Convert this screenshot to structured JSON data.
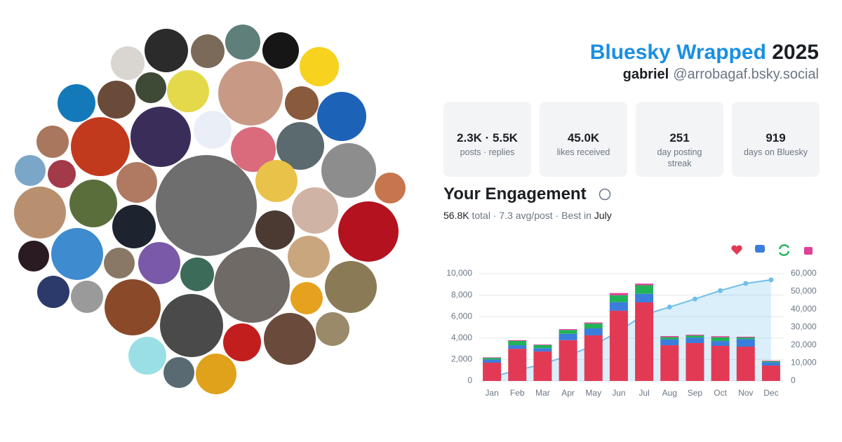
{
  "header": {
    "title": "Bluesky Wrapped",
    "year": "2025",
    "name": "gabriel",
    "handle": "@arrobagaf.bsky.social"
  },
  "stats": [
    {
      "value": "2.3K · 5.5K",
      "label": "posts · replies"
    },
    {
      "value": "45.0K",
      "label": "likes received"
    },
    {
      "value": "251",
      "label": "day posting streak"
    },
    {
      "value": "919",
      "label": "days on Bluesky"
    }
  ],
  "engagement": {
    "title": "Your Engagement",
    "total": "56.8K",
    "summary": "total · 7.3 avg/post · Best in",
    "best_month": "July"
  },
  "chart_data": {
    "type": "bar",
    "stacked": true,
    "grid": true,
    "categories": [
      "Jan",
      "Feb",
      "Mar",
      "Apr",
      "May",
      "Jun",
      "Jul",
      "Aug",
      "Sep",
      "Oct",
      "Nov",
      "Dec"
    ],
    "series": [
      {
        "color": "#e23a55",
        "values": [
          1700,
          3000,
          2750,
          3800,
          4250,
          6540,
          7320,
          3330,
          3530,
          3270,
          3200,
          1440
        ]
      },
      {
        "color": "#3b7ddd",
        "values": [
          300,
          330,
          300,
          600,
          650,
          800,
          800,
          550,
          500,
          450,
          700,
          300
        ]
      },
      {
        "color": "#22b357",
        "values": [
          150,
          400,
          300,
          350,
          450,
          650,
          800,
          200,
          200,
          350,
          150,
          100
        ]
      },
      {
        "color": "#e0409a",
        "values": [
          50,
          70,
          50,
          80,
          100,
          200,
          150,
          100,
          80,
          100,
          70,
          50
        ]
      },
      {
        "type": "line",
        "axis": "y2",
        "color": "#6fbfea",
        "values": [
          2200,
          6000,
          9400,
          14200,
          19700,
          27900,
          37000,
          41300,
          45800,
          50500,
          54500,
          56500
        ]
      }
    ],
    "ylim": [
      0,
      10000
    ],
    "yticks": [
      0,
      {
        "value": 2000,
        "label": "2,000"
      },
      {
        "value": 4000,
        "label": "4,000"
      },
      {
        "value": 6000,
        "label": "6,000"
      },
      {
        "value": 8000,
        "label": "8,000"
      },
      {
        "value": 10000,
        "label": "10,000"
      }
    ],
    "y2lim": [
      0,
      60000
    ],
    "y2ticks": [
      0,
      {
        "value": 10000,
        "label": "10,000"
      },
      {
        "value": 20000,
        "label": "20,000"
      },
      {
        "value": 30000,
        "label": "30,000"
      },
      {
        "value": 40000,
        "label": "40,000"
      },
      {
        "value": 50000,
        "label": "50,000"
      },
      {
        "value": 60000,
        "label": "60,000"
      }
    ]
  }
}
